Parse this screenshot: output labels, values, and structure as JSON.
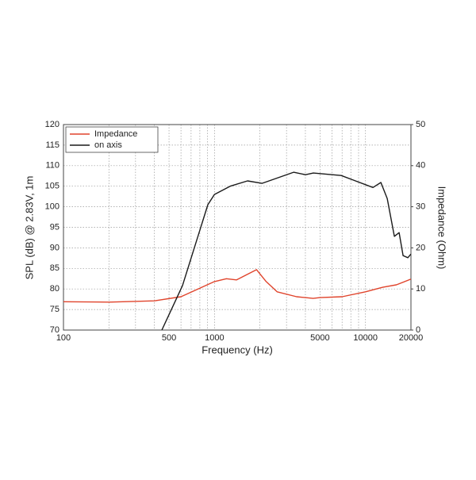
{
  "chart_data": {
    "type": "line",
    "xlabel": "Frequency (Hz)",
    "ylabel": "SPL (dB) @ 2.83V, 1m",
    "y2label": "Impedance (Ohm)",
    "xscale": "log",
    "xlim": [
      100,
      20000
    ],
    "ylim": [
      70,
      120
    ],
    "y2lim": [
      0,
      50
    ],
    "xticks": [
      100,
      500,
      1000,
      5000,
      10000,
      20000
    ],
    "xgrid": [
      200,
      300,
      400,
      600,
      700,
      800,
      900,
      2000,
      3000,
      4000,
      6000,
      7000,
      8000,
      9000
    ],
    "yticks": [
      70,
      75,
      80,
      85,
      90,
      95,
      100,
      105,
      110,
      115,
      120
    ],
    "y2ticks": [
      0,
      10,
      20,
      30,
      40,
      50
    ],
    "grid": true,
    "legend": "upper left",
    "series": [
      {
        "name": "Impedance",
        "color": "#e0442c",
        "axis": "y2",
        "x": [
          100,
          200,
          400,
          600,
          800,
          1000,
          1200,
          1400,
          1600,
          1900,
          2200,
          2600,
          3500,
          4500,
          5000,
          7000,
          10000,
          13000,
          16000,
          20000
        ],
        "values": [
          6.9,
          6.8,
          7.1,
          8.1,
          10.2,
          11.8,
          12.5,
          12.2,
          13.3,
          14.7,
          11.8,
          9.3,
          8.1,
          7.7,
          7.9,
          8.1,
          9.3,
          10.4,
          11,
          12.4
        ]
      },
      {
        "name": "on axis",
        "color": "#1a1a1a",
        "axis": "y",
        "x": [
          448,
          614,
          904,
          1000,
          1270,
          1656,
          2062,
          2472,
          3342,
          4008,
          4519,
          6900,
          8280,
          11200,
          12640,
          13930,
          15530,
          16700,
          17750,
          19080,
          20000
        ],
        "values": [
          70,
          80.8,
          100.5,
          103,
          105,
          106.3,
          105.7,
          106.7,
          108.4,
          107.8,
          108.2,
          107.6,
          106.5,
          104.7,
          105.9,
          102,
          92.8,
          93.7,
          88.1,
          87.6,
          88.5
        ]
      }
    ]
  }
}
